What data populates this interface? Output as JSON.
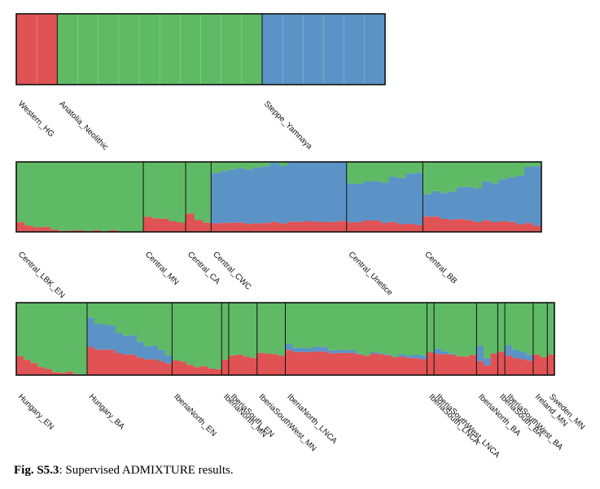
{
  "colors": {
    "western_hg": "#e05254",
    "anatolia": "#5fba66",
    "steppe": "#5b93c6"
  },
  "caption": {
    "label": "Fig. S5.3",
    "text": ": Supervised ADMIXTURE results."
  },
  "chart_data": {
    "type": "stacked-bar",
    "ylim": [
      0,
      1
    ],
    "panels": [
      {
        "groups": [
          {
            "label": "Western_HG",
            "n": 2,
            "profile": [
              [
                1.0,
                0.0
              ],
              [
                1.0,
                0.0
              ]
            ]
          },
          {
            "label": "Anatolia_Neolithic",
            "n": 10,
            "profile": [
              [
                0.0,
                0.0
              ],
              [
                0.0,
                0.0
              ]
            ]
          },
          {
            "label": "Steppe_Yamnaya",
            "n": 6,
            "profile": [
              [
                0.0,
                1.0
              ],
              [
                0.0,
                1.0
              ]
            ]
          }
        ]
      },
      {
        "groups": [
          {
            "label": "Central_LBK_EN",
            "n": 15,
            "profile": [
              [
                0.12,
                0.0
              ],
              [
                0.03,
                0.0
              ],
              [
                0.02,
                0.0
              ],
              [
                0.0,
                0.0
              ]
            ]
          },
          {
            "label": "Central_MN",
            "n": 5,
            "profile": [
              [
                0.22,
                0.0
              ],
              [
                0.18,
                0.0
              ],
              [
                0.14,
                0.0
              ]
            ]
          },
          {
            "label": "Central_CA",
            "n": 3,
            "profile": [
              [
                0.25,
                0.0
              ],
              [
                0.16,
                0.0
              ],
              [
                0.12,
                0.0
              ]
            ]
          },
          {
            "label": "Central_CWC",
            "n": 16,
            "profile": [
              [
                0.14,
                0.74
              ],
              [
                0.12,
                0.8
              ],
              [
                0.14,
                0.86
              ],
              [
                0.14,
                0.86
              ]
            ]
          },
          {
            "label": "Central_Unetice",
            "n": 9,
            "profile": [
              [
                0.14,
                0.56
              ],
              [
                0.15,
                0.53
              ],
              [
                0.14,
                0.66
              ],
              [
                0.1,
                0.75
              ]
            ]
          },
          {
            "label": "Central_BB",
            "n": 14,
            "profile": [
              [
                0.22,
                0.32
              ],
              [
                0.18,
                0.42
              ],
              [
                0.15,
                0.52
              ],
              [
                0.13,
                0.6
              ],
              [
                0.1,
                0.87
              ]
            ]
          }
        ]
      },
      {
        "groups": [
          {
            "label": "Hungary_EN",
            "n": 10,
            "profile": [
              [
                0.25,
                0.0
              ],
              [
                0.1,
                0.0
              ],
              [
                0.04,
                0.0
              ],
              [
                0.0,
                0.0
              ]
            ]
          },
          {
            "label": "Hungary_BA",
            "n": 12,
            "profile": [
              [
                0.38,
                0.4
              ],
              [
                0.32,
                0.3
              ],
              [
                0.24,
                0.22
              ],
              [
                0.15,
                0.1
              ]
            ]
          },
          {
            "label": "IberiaNorth_EN",
            "n": 7,
            "profile": [
              [
                0.2,
                0.0
              ],
              [
                0.12,
                0.0
              ],
              [
                0.1,
                0.0
              ]
            ]
          },
          {
            "label": "IberiaNorth_MN",
            "n": 1,
            "profile": [
              [
                0.22,
                0.0
              ],
              [
                0.22,
                0.0
              ]
            ]
          },
          {
            "label": "IberiaSouth_EN",
            "n": 4,
            "profile": [
              [
                0.28,
                0.0
              ],
              [
                0.24,
                0.0
              ]
            ]
          },
          {
            "label": "IberiaSouthWest_MN",
            "n": 4,
            "profile": [
              [
                0.3,
                0.0
              ],
              [
                0.28,
                0.0
              ]
            ]
          },
          {
            "label": "IberiaNorth_LNCA",
            "n": 20,
            "profile": [
              [
                0.34,
                0.08
              ],
              [
                0.3,
                0.04
              ],
              [
                0.28,
                0.0
              ],
              [
                0.22,
                0.05
              ]
            ]
          },
          {
            "label": "IberiaSouth_LNCA",
            "n": 1,
            "profile": [
              [
                0.3,
                0.0
              ],
              [
                0.3,
                0.0
              ]
            ]
          },
          {
            "label": "IberiaSouthWest_LNCA",
            "n": 6,
            "profile": [
              [
                0.3,
                0.08
              ],
              [
                0.28,
                0.0
              ],
              [
                0.26,
                0.0
              ]
            ]
          },
          {
            "label": "IberiaNorth_BA",
            "n": 3,
            "profile": [
              [
                0.2,
                0.22
              ],
              [
                0.15,
                0.12
              ],
              [
                0.3,
                0.0
              ]
            ]
          },
          {
            "label": "IberiaSouth_BA",
            "n": 1,
            "profile": [
              [
                0.32,
                0.0
              ],
              [
                0.32,
                0.0
              ]
            ]
          },
          {
            "label": "IberiaSouthWest_BA",
            "n": 4,
            "profile": [
              [
                0.25,
                0.12
              ],
              [
                0.22,
                0.1
              ],
              [
                0.2,
                0.08
              ]
            ]
          },
          {
            "label": "Ireland_MN",
            "n": 2,
            "profile": [
              [
                0.28,
                0.0
              ],
              [
                0.24,
                0.0
              ]
            ]
          },
          {
            "label": "Sweden_MN",
            "n": 1,
            "profile": [
              [
                0.28,
                0.0
              ],
              [
                0.28,
                0.0
              ]
            ]
          }
        ]
      }
    ]
  }
}
